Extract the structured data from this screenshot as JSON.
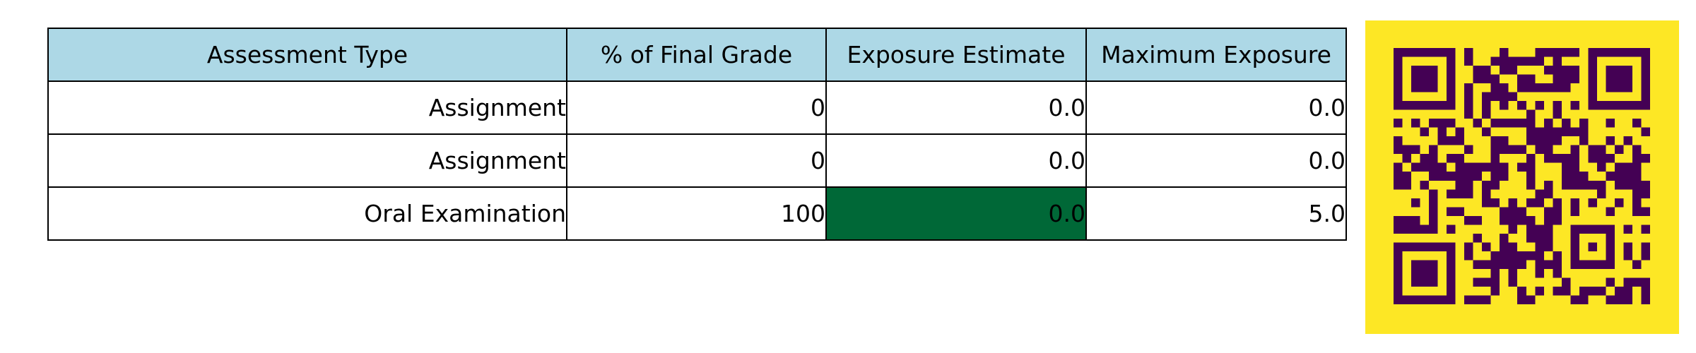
{
  "chart_data": {
    "type": "table",
    "columns": [
      "Assessment Type",
      "% of Final Grade",
      "Exposure Estimate",
      "Maximum Exposure"
    ],
    "rows": [
      [
        "Assignment",
        "0",
        "0.0",
        "0.0"
      ],
      [
        "Assignment",
        "0",
        "0.0",
        "0.0"
      ],
      [
        "Oral Examination",
        "100",
        "0.0",
        "5.0"
      ]
    ],
    "highlighted_cell": {
      "row": 2,
      "column": 2,
      "color": "#006837"
    }
  },
  "colors": {
    "header_bg": "#add8e6",
    "highlight": "#006837",
    "qr_background": "#fde725",
    "qr_modules": "#440154"
  },
  "qr_code": {
    "icon": "qr-code-icon"
  }
}
